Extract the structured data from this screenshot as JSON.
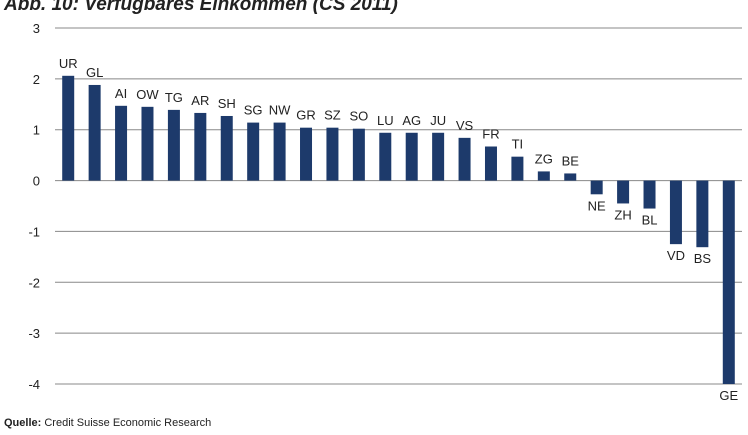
{
  "chart_data": {
    "type": "bar",
    "title": "Abb. 10: Verfügbares Einkommen (CS 2011)",
    "source_label": "Quelle:",
    "source": "Credit Suisse Economic Research",
    "categories": [
      "UR",
      "GL",
      "AI",
      "OW",
      "TG",
      "AR",
      "SH",
      "SG",
      "NW",
      "GR",
      "SZ",
      "SO",
      "LU",
      "AG",
      "JU",
      "VS",
      "FR",
      "TI",
      "ZG",
      "BE",
      "NE",
      "ZH",
      "BL",
      "VD",
      "BS",
      "GE"
    ],
    "values": [
      2.06,
      1.88,
      1.47,
      1.45,
      1.39,
      1.33,
      1.27,
      1.14,
      1.14,
      1.04,
      1.04,
      1.02,
      0.94,
      0.94,
      0.94,
      0.84,
      0.67,
      0.47,
      0.18,
      0.14,
      -0.27,
      -0.45,
      -0.55,
      -1.25,
      -1.31,
      -4.0
    ],
    "color": "#1d3a6b",
    "ylim": [
      -4,
      3
    ],
    "yticks": [
      -4,
      -3,
      -2,
      -1,
      0,
      1,
      2,
      3
    ],
    "grid": true
  }
}
